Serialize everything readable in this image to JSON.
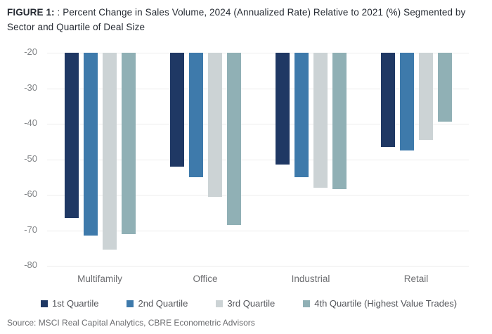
{
  "figure": {
    "label": "FIGURE 1:",
    "title": ": Percent Change in Sales Volume, 2024 (Annualized Rate) Relative to 2021 (%) Segmented by Sector and Quartile of Deal Size"
  },
  "source": "Source: MSCI Real Capital Analytics, CBRE Econometric Advisors",
  "chart_data": {
    "type": "bar",
    "title": "Percent Change in Sales Volume, 2024 (Annualized Rate) Relative to 2021 (%) Segmented by Sector and Quartile of Deal Size",
    "categories": [
      "Multifamily",
      "Office",
      "Industrial",
      "Retail"
    ],
    "series": [
      {
        "name": "1st Quartile",
        "color": "#1f3864",
        "values": [
          -66.5,
          -52,
          -51.5,
          -46.5
        ]
      },
      {
        "name": "2nd Quartile",
        "color": "#3e7aab",
        "values": [
          -71.5,
          -55,
          -55,
          -47.5
        ]
      },
      {
        "name": "3rd Quartile",
        "color": "#ccd3d5",
        "values": [
          -75.5,
          -60.5,
          -58,
          -44.5
        ]
      },
      {
        "name": "4th Quartile (Highest Value Trades)",
        "color": "#90b0b5",
        "values": [
          -71,
          -68.5,
          -58.5,
          -39.5
        ]
      }
    ],
    "xlabel": "",
    "ylabel": "",
    "ylim": [
      -80,
      -20
    ],
    "yticks": [
      -20,
      -30,
      -40,
      -50,
      -60,
      -70,
      -80
    ],
    "bar_baseline": -20,
    "bar_anchor": "top",
    "grid": "horizontal",
    "legend_position": "bottom",
    "colors": {
      "gridline": "#ececec",
      "tick_text": "#7f8285",
      "category_text": "#6d6e71",
      "legend_text": "#54565b",
      "title_text": "#262b33",
      "source_text": "#6d6e71"
    }
  }
}
